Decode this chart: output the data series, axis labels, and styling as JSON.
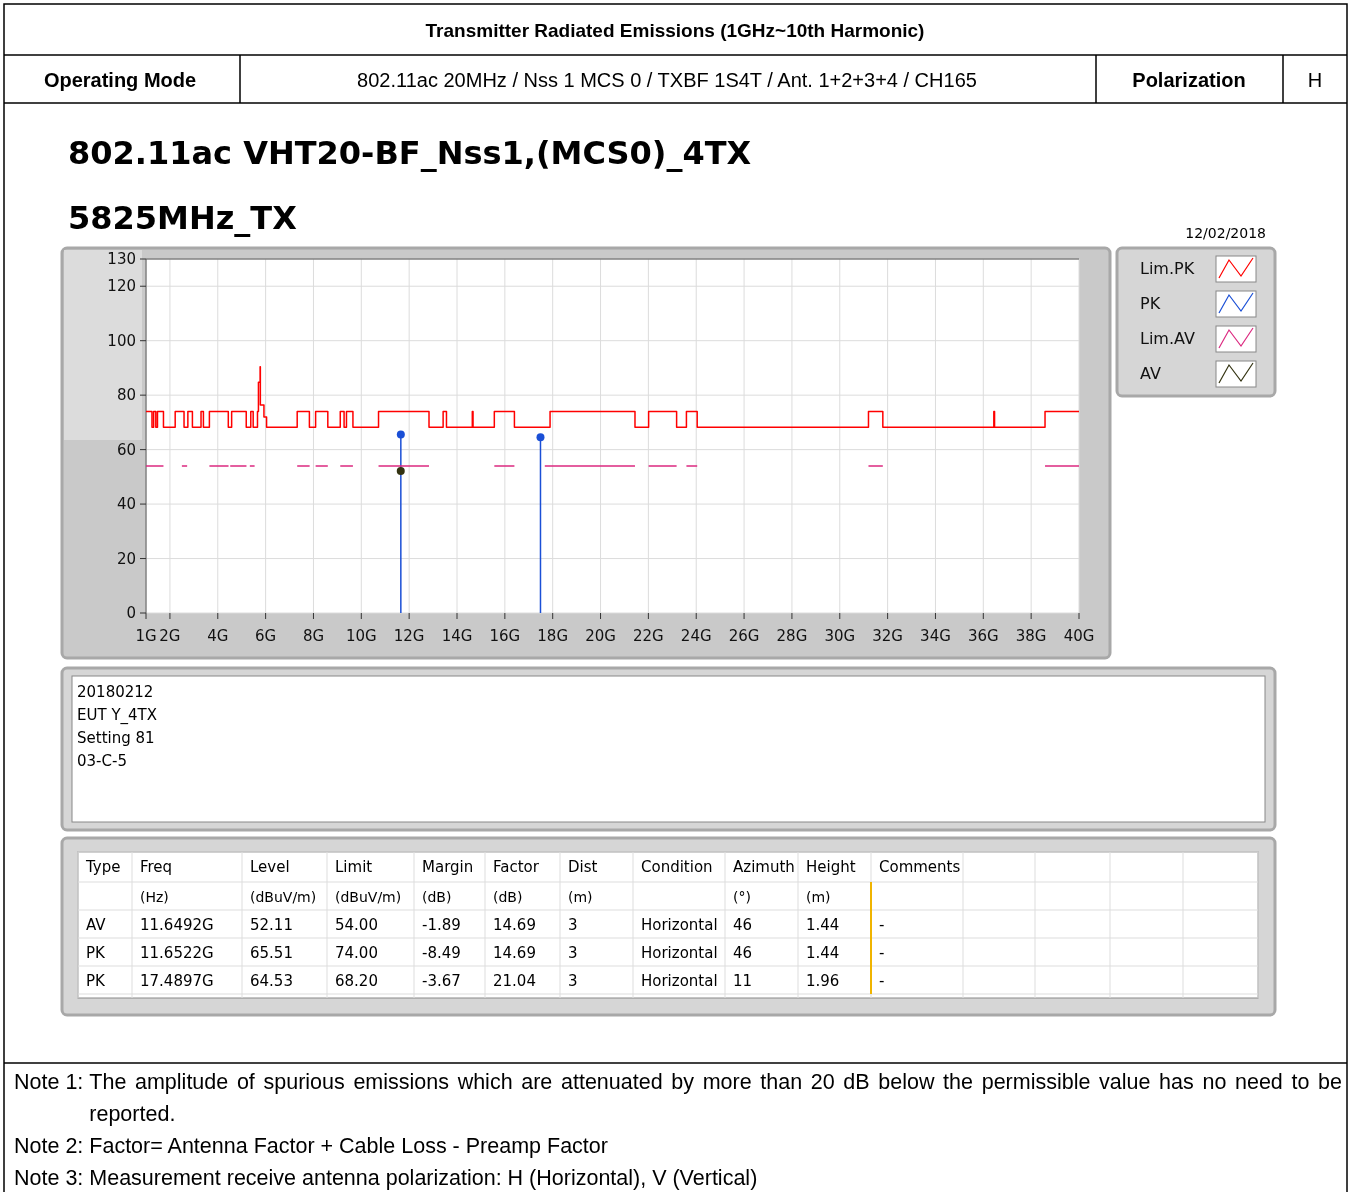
{
  "chart_data": {
    "type": "step",
    "title": "802.11ac VHT20-BF_Nss1,(MCS0)_4TX",
    "subtitle": "5825MHz_TX",
    "xlim": [
      1,
      40
    ],
    "xticks": [
      {
        "value": 1,
        "label": "1G"
      },
      {
        "value": 2,
        "label": "2G"
      },
      {
        "value": 4,
        "label": "4G"
      },
      {
        "value": 6,
        "label": "6G"
      },
      {
        "value": 8,
        "label": "8G"
      },
      {
        "value": 10,
        "label": "10G"
      },
      {
        "value": 12,
        "label": "12G"
      },
      {
        "value": 14,
        "label": "14G"
      },
      {
        "value": 16,
        "label": "16G"
      },
      {
        "value": 18,
        "label": "18G"
      },
      {
        "value": 20,
        "label": "20G"
      },
      {
        "value": 22,
        "label": "22G"
      },
      {
        "value": 24,
        "label": "24G"
      },
      {
        "value": 26,
        "label": "26G"
      },
      {
        "value": 28,
        "label": "28G"
      },
      {
        "value": 30,
        "label": "30G"
      },
      {
        "value": 32,
        "label": "32G"
      },
      {
        "value": 34,
        "label": "34G"
      },
      {
        "value": 36,
        "label": "36G"
      },
      {
        "value": 38,
        "label": "38G"
      },
      {
        "value": 40,
        "label": "40G"
      }
    ],
    "ylim": [
      0,
      130
    ],
    "yticks": [
      0,
      20,
      40,
      60,
      80,
      100,
      120,
      130
    ],
    "grid": true,
    "legend": "top right",
    "series": [
      {
        "name": "Lim.PK",
        "color": "#ff0000",
        "x": [
          1,
          1.25,
          1.32,
          1.41,
          1.48,
          1.73,
          2.22,
          2.59,
          2.75,
          2.94,
          3.3,
          3.4,
          3.65,
          4.44,
          4.58,
          5.19,
          5.38,
          5.48,
          5.66,
          5.7,
          5.77,
          5.78,
          5.93,
          6.04,
          7.32,
          7.83,
          8.09,
          8.6,
          9.12,
          9.28,
          9.38,
          9.65,
          10.72,
          12.83,
          13.42,
          13.56,
          14.64,
          14.67,
          15.56,
          16.4,
          17.89,
          21.44,
          22.01,
          23.18,
          23.59,
          24.04,
          31.2,
          31.8,
          36.44,
          36.47,
          38.58,
          40
        ],
        "values": [
          74,
          68.2,
          74,
          68.2,
          74,
          68.2,
          74,
          68.2,
          74,
          68.2,
          74,
          68.2,
          74,
          68.2,
          74,
          68.2,
          74,
          68.2,
          74,
          84.7,
          90.4,
          76.4,
          72,
          68.2,
          74,
          68.2,
          74,
          68.2,
          74,
          68.2,
          74,
          68.2,
          74,
          68.2,
          74,
          68.2,
          74,
          68.2,
          74,
          68.2,
          74,
          68.2,
          74,
          68.2,
          74,
          68.2,
          74,
          68.2,
          74,
          68.2,
          74,
          74
        ]
      },
      {
        "name": "PK",
        "type": "lollipop",
        "color": "#1a4fd6",
        "marker": "circle",
        "x": [
          11.6522,
          17.4897
        ],
        "values": [
          65.51,
          64.53
        ]
      },
      {
        "name": "Lim.AV",
        "type": "line",
        "color": "#dc2a80",
        "x": [
          1,
          1.73,
          null,
          2.5,
          2.72,
          null,
          3.65,
          4.45,
          null,
          4.52,
          5.2,
          null,
          5.34,
          5.54,
          null,
          7.32,
          7.84,
          null,
          8.09,
          8.6,
          null,
          9.12,
          9.65,
          null,
          10.72,
          12.83,
          null,
          15.56,
          16.4,
          null,
          17.67,
          21.44,
          null,
          22.01,
          23.18,
          null,
          23.59,
          24.04,
          null,
          31.2,
          31.8,
          null,
          38.58,
          40
        ],
        "values": [
          54,
          54,
          null,
          54,
          54,
          null,
          54,
          54,
          null,
          54,
          54,
          null,
          54,
          54,
          null,
          54,
          54,
          null,
          54,
          54,
          null,
          54,
          54,
          null,
          54,
          54,
          null,
          54,
          54,
          null,
          54,
          54,
          null,
          54,
          54,
          null,
          54,
          54,
          null,
          54,
          54,
          null,
          54,
          54
        ]
      },
      {
        "name": "AV",
        "type": "scatter",
        "color": "#333311",
        "marker": "circle",
        "x": [
          11.6492
        ],
        "values": [
          52.11
        ]
      }
    ],
    "annotations": [
      "Transmitter Radiated Emissions (1GHz~10th Harmonic)",
      "Operating Mode",
      "802.11ac 20MHz / Nss 1 MCS 0 / TXBF 1S4T / Ant. 1+2+3+4 / CH165",
      "Polarization",
      "H",
      "12/02/2018",
      "20180212",
      "EUT Y_4TX",
      "Setting 81",
      "03-C-5",
      "Type",
      "Freq",
      "Level",
      "Limit",
      "Margin",
      "Factor",
      "Dist",
      "Condition",
      "Azimuth",
      "Height",
      "Comments",
      "(Hz)",
      "(dBuV/m)",
      "(dBuV/m)",
      "(dB)",
      "(dB)",
      "(m)",
      "(°)",
      "(m)",
      "AV",
      "11.6492G",
      "52.11",
      "54.00",
      "-1.89",
      "14.69",
      "3",
      "Horizontal",
      "46",
      "1.44",
      "-",
      "PK",
      "11.6522G",
      "65.51",
      "74.00",
      "-8.49",
      "14.69",
      "3",
      "Horizontal",
      "46",
      "1.44",
      "-",
      "PK",
      "17.4897G",
      "64.53",
      "68.20",
      "-3.67",
      "21.04",
      "3",
      "Horizontal",
      "11",
      "1.96",
      "-",
      "Note 1: The amplitude of spurious emissions which are attenuated by more than 20 dB below the permissible value has no need to be reported.",
      "Note 2: Factor= Antenna Factor + Cable Loss - Preamp Factor",
      "Note 3: Measurement receive antenna polarization: H (Horizontal), V (Vertical)"
    ]
  }
}
